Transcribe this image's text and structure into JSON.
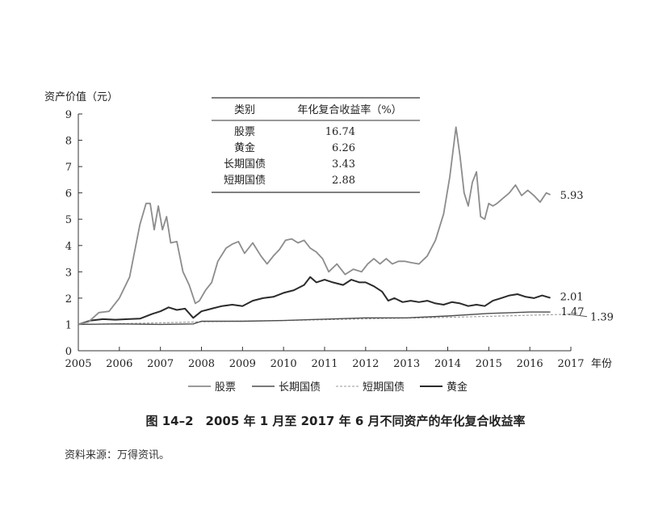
{
  "chart_data": {
    "type": "line",
    "ylabel": "资产价值（元）",
    "xlabel": "年份",
    "xlim": [
      2005,
      2017
    ],
    "ylim": [
      0,
      9
    ],
    "xticks": [
      "2005",
      "2006",
      "2007",
      "2008",
      "2009",
      "2010",
      "2011",
      "2012",
      "2013",
      "2014",
      "2015",
      "2016",
      "2017"
    ],
    "yticks": [
      "0",
      "1",
      "2",
      "3",
      "4",
      "5",
      "6",
      "7",
      "8",
      "9"
    ],
    "grid": false,
    "legend_position": "bottom",
    "series": [
      {
        "name": "股票",
        "color": "#8c8c8c",
        "end_label": "5.93",
        "x": [
          2005.0,
          2005.25,
          2005.5,
          2005.75,
          2006.0,
          2006.25,
          2006.5,
          2006.65,
          2006.75,
          2006.85,
          2006.95,
          2007.05,
          2007.15,
          2007.25,
          2007.4,
          2007.55,
          2007.7,
          2007.85,
          2007.95,
          2008.1,
          2008.25,
          2008.4,
          2008.6,
          2008.75,
          2008.9,
          2009.05,
          2009.25,
          2009.45,
          2009.6,
          2009.75,
          2009.9,
          2010.05,
          2010.2,
          2010.35,
          2010.5,
          2010.65,
          2010.8,
          2010.95,
          2011.1,
          2011.3,
          2011.5,
          2011.7,
          2011.9,
          2012.05,
          2012.2,
          2012.35,
          2012.5,
          2012.65,
          2012.8,
          2012.95,
          2013.1,
          2013.3,
          2013.5,
          2013.7,
          2013.9,
          2014.05,
          2014.2,
          2014.3,
          2014.4,
          2014.5,
          2014.6,
          2014.7,
          2014.8,
          2014.9,
          2015.0,
          2015.1,
          2015.2,
          2015.35,
          2015.5,
          2015.65,
          2015.8,
          2015.95,
          2016.1,
          2016.25,
          2016.4,
          2016.5
        ],
        "y": [
          1.0,
          1.1,
          1.45,
          1.5,
          2.0,
          2.8,
          4.8,
          5.6,
          5.6,
          4.6,
          5.5,
          4.6,
          5.1,
          4.1,
          4.15,
          3.0,
          2.5,
          1.8,
          1.9,
          2.3,
          2.6,
          3.4,
          3.9,
          4.05,
          4.15,
          3.7,
          4.1,
          3.6,
          3.3,
          3.6,
          3.85,
          4.2,
          4.25,
          4.1,
          4.2,
          3.9,
          3.75,
          3.5,
          3.0,
          3.3,
          2.9,
          3.1,
          3.0,
          3.3,
          3.5,
          3.3,
          3.5,
          3.3,
          3.4,
          3.4,
          3.35,
          3.3,
          3.6,
          4.2,
          5.2,
          6.6,
          8.5,
          7.4,
          6.0,
          5.5,
          6.4,
          6.8,
          5.1,
          5.0,
          5.6,
          5.5,
          5.6,
          5.8,
          6.0,
          6.3,
          5.9,
          6.1,
          5.9,
          5.65,
          6.0,
          5.93
        ]
      },
      {
        "name": "长期国债",
        "color": "#4d4d4d",
        "end_label": "1.47",
        "x": [
          2005.0,
          2006.0,
          2007.0,
          2007.8,
          2008.0,
          2009.0,
          2010.0,
          2011.0,
          2012.0,
          2013.0,
          2014.0,
          2015.0,
          2016.0,
          2016.5
        ],
        "y": [
          1.0,
          1.02,
          1.0,
          1.02,
          1.12,
          1.12,
          1.15,
          1.2,
          1.25,
          1.25,
          1.32,
          1.42,
          1.47,
          1.47
        ]
      },
      {
        "name": "短期国债",
        "color": "#9a9a9a",
        "end_label": "1.39",
        "x": [
          2005.0,
          2006.0,
          2007.0,
          2008.0,
          2009.0,
          2010.0,
          2011.0,
          2012.0,
          2013.0,
          2014.0,
          2015.0,
          2016.0,
          2017.0
        ],
        "y": [
          1.0,
          1.03,
          1.06,
          1.1,
          1.13,
          1.15,
          1.18,
          1.21,
          1.24,
          1.27,
          1.31,
          1.35,
          1.39
        ]
      },
      {
        "name": "黄金",
        "color": "#2b2b2b",
        "end_label": "2.01",
        "x": [
          2005.0,
          2005.3,
          2005.6,
          2005.9,
          2006.2,
          2006.5,
          2006.8,
          2007.0,
          2007.2,
          2007.4,
          2007.6,
          2007.8,
          2008.0,
          2008.25,
          2008.5,
          2008.75,
          2009.0,
          2009.25,
          2009.5,
          2009.75,
          2010.0,
          2010.25,
          2010.5,
          2010.65,
          2010.8,
          2011.0,
          2011.2,
          2011.45,
          2011.65,
          2011.85,
          2012.0,
          2012.2,
          2012.4,
          2012.55,
          2012.7,
          2012.9,
          2013.1,
          2013.3,
          2013.5,
          2013.7,
          2013.9,
          2014.1,
          2014.3,
          2014.5,
          2014.7,
          2014.9,
          2015.1,
          2015.3,
          2015.5,
          2015.7,
          2015.9,
          2016.1,
          2016.3,
          2016.5
        ],
        "y": [
          1.0,
          1.15,
          1.2,
          1.18,
          1.2,
          1.22,
          1.4,
          1.5,
          1.65,
          1.55,
          1.6,
          1.25,
          1.5,
          1.6,
          1.7,
          1.75,
          1.7,
          1.9,
          2.0,
          2.05,
          2.2,
          2.3,
          2.5,
          2.8,
          2.6,
          2.7,
          2.6,
          2.5,
          2.7,
          2.6,
          2.6,
          2.45,
          2.25,
          1.9,
          2.0,
          1.85,
          1.9,
          1.85,
          1.9,
          1.8,
          1.75,
          1.85,
          1.8,
          1.7,
          1.75,
          1.7,
          1.9,
          2.0,
          2.1,
          2.15,
          2.05,
          2.0,
          2.1,
          2.01
        ]
      }
    ],
    "inset_table": {
      "headers": [
        "类别",
        "年化复合收益率（%）"
      ],
      "rows": [
        [
          "股票",
          "16.74"
        ],
        [
          "黄金",
          "6.26"
        ],
        [
          "长期国债",
          "3.43"
        ],
        [
          "短期国债",
          "2.88"
        ]
      ]
    }
  },
  "caption": "图 14–2　2005 年 1 月至 2017 年 6 月不同资产的年化复合收益率",
  "source": "资料来源：万得资讯。"
}
